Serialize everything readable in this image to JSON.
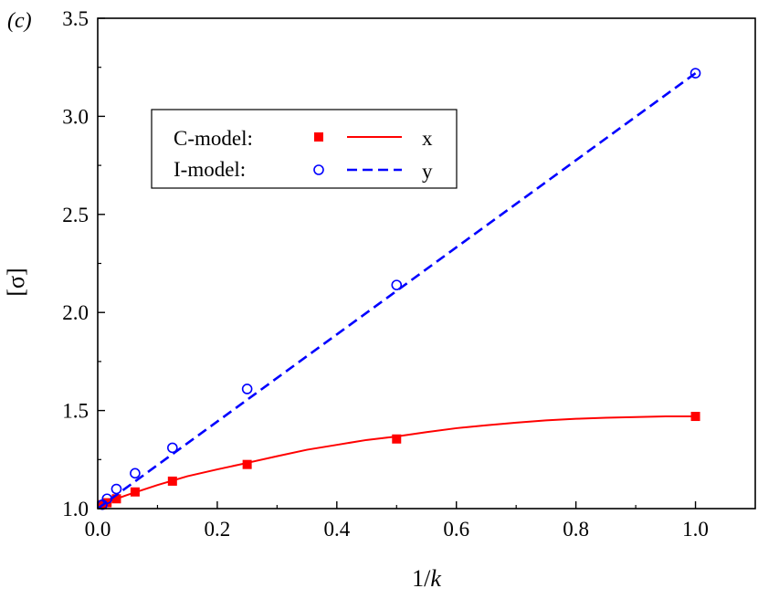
{
  "chart_data": {
    "type": "line",
    "panel_label": "(c)",
    "xlabel_prefix": "1/",
    "xlabel_var": "k",
    "ylabel": "[σ]",
    "xlim": [
      0,
      1.1
    ],
    "ylim": [
      1.0,
      3.5
    ],
    "x_ticks": [
      0.0,
      0.2,
      0.4,
      0.6,
      0.8,
      1.0
    ],
    "x_tick_labels": [
      "0.0",
      "0.2",
      "0.4",
      "0.6",
      "0.8",
      "1.0"
    ],
    "y_ticks": [
      1.0,
      1.5,
      2.0,
      2.5,
      3.0,
      3.5
    ],
    "y_tick_labels": [
      "1.0",
      "1.5",
      "2.0",
      "2.5",
      "3.0",
      "3.5"
    ],
    "grid": false,
    "legend_placement": "upper-left",
    "legend": [
      {
        "model": "C-model:",
        "fit_label": "x",
        "marker": "filled-square",
        "line": "solid",
        "color": "#ff0000"
      },
      {
        "model": "I-model:",
        "fit_label": "y",
        "marker": "open-circle",
        "line": "dashed",
        "color": "#0000ff"
      }
    ],
    "series": [
      {
        "legend_index": 0,
        "color": "#ff0000",
        "marker": "filled-square",
        "x": [
          0.0078,
          0.0156,
          0.03125,
          0.0625,
          0.125,
          0.25,
          0.5,
          1.0
        ],
        "y": [
          1.02,
          1.03,
          1.05,
          1.085,
          1.14,
          1.225,
          1.355,
          1.47
        ],
        "fit_x": [
          0.0078,
          0.05,
          0.1,
          0.15,
          0.2,
          0.25,
          0.3,
          0.35,
          0.4,
          0.45,
          0.5,
          0.55,
          0.6,
          0.65,
          0.7,
          0.75,
          0.8,
          0.85,
          0.9,
          0.95,
          1.0
        ],
        "fit_y": [
          1.025,
          1.07,
          1.12,
          1.165,
          1.2,
          1.233,
          1.267,
          1.3,
          1.325,
          1.35,
          1.368,
          1.39,
          1.41,
          1.425,
          1.438,
          1.45,
          1.458,
          1.463,
          1.467,
          1.47,
          1.47
        ]
      },
      {
        "legend_index": 1,
        "color": "#0000ff",
        "marker": "open-circle",
        "x": [
          0.0078,
          0.0156,
          0.03125,
          0.0625,
          0.125,
          0.25,
          0.5,
          1.0
        ],
        "y": [
          1.02,
          1.05,
          1.1,
          1.18,
          1.31,
          1.61,
          2.14,
          3.22
        ],
        "fit_x": [
          0.0,
          1.0
        ],
        "fit_y": [
          1.0,
          3.22
        ]
      }
    ]
  }
}
